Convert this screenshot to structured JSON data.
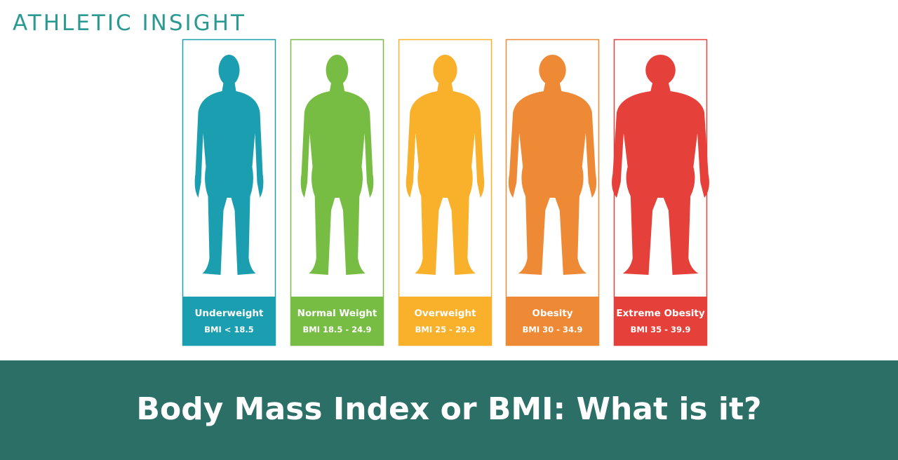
{
  "brand": "ATHLETIC INSIGHT",
  "categories": [
    {
      "label": "Underweight",
      "range": "BMI < 18.5"
    },
    {
      "label": "Normal Weight",
      "range": "BMI 18.5 - 24.9"
    },
    {
      "label": "Overweight",
      "range": "BMI 25 - 29.9"
    },
    {
      "label": "Obesity",
      "range": "BMI 30 - 34.9"
    },
    {
      "label": "Extreme Obesity",
      "range": "BMI 35 - 39.9"
    }
  ],
  "title": "Body Mass Index or BMI: What is it?"
}
